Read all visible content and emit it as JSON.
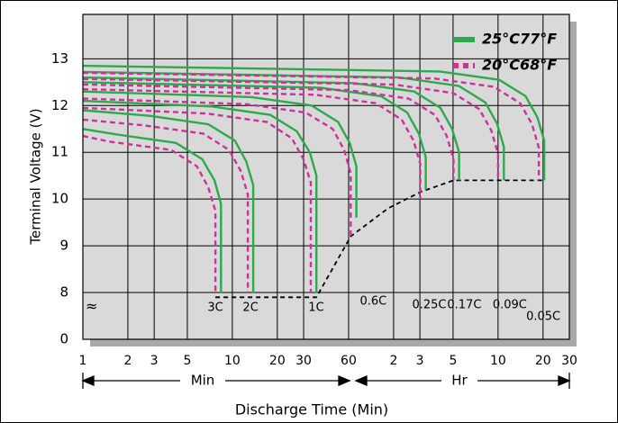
{
  "chart_data": {
    "type": "line",
    "xlabel": "Discharge Time (Min)",
    "ylabel": "Terminal Voltage (V)",
    "xscale": "log",
    "xlim": [
      1,
      1800
    ],
    "xticks": [
      1,
      2,
      3,
      5,
      10,
      20,
      30,
      60,
      {
        "value": 120,
        "label": "2"
      },
      {
        "value": 180,
        "label": "3"
      },
      {
        "value": 300,
        "label": "5"
      },
      {
        "value": 600,
        "label": "10"
      },
      {
        "value": 1200,
        "label": "20"
      },
      {
        "value": 1800,
        "label": "30"
      }
    ],
    "ylim": [
      0,
      13.95
    ],
    "ybreak": [
      0,
      7
    ],
    "axis_break_symbol": "≈",
    "yticks": [
      0,
      8,
      9,
      10,
      11,
      12,
      13
    ],
    "grid": true,
    "legend": "upper right",
    "x_ranges": [
      "Min",
      "Hr"
    ],
    "curve_labels": [
      "3C",
      "2C",
      "1C",
      "0.6C",
      "0.25C",
      "0.17C",
      "0.09C",
      "0.05C"
    ],
    "series": [
      {
        "name": "25°C77°F",
        "color": "#2fa84f",
        "dashed": false,
        "curves": [
          {
            "x": [
              1,
              1.7,
              4.2,
              6.3,
              7.6,
              8.4,
              8.4
            ],
            "values": [
              11.5,
              11.38,
              11.2,
              10.85,
              10.4,
              9.9,
              8
            ]
          },
          {
            "x": [
              1,
              2.8,
              6.9,
              10.4,
              12.4,
              13.8,
              13.8
            ],
            "values": [
              11.9,
              11.78,
              11.6,
              11.25,
              10.8,
              10.3,
              8
            ]
          },
          {
            "x": [
              1,
              7.3,
              18,
              27,
              33,
              36.5,
              36.5
            ],
            "values": [
              12.1,
              11.98,
              11.8,
              11.45,
              11,
              10.5,
              8
            ]
          },
          {
            "x": [
              1,
              13.5,
              34,
              51,
              61,
              67.6,
              67.6
            ],
            "values": [
              12.3,
              12.18,
              12,
              11.65,
              11.2,
              10.7,
              9.6
            ]
          },
          {
            "x": [
              1,
              39,
              99,
              148,
              177,
              197,
              197
            ],
            "values": [
              12.5,
              12.38,
              12.2,
              11.85,
              11.4,
              10.9,
              10.2
            ]
          },
          {
            "x": [
              1,
              66,
              165,
              247,
              296,
              329,
              329
            ],
            "values": [
              12.6,
              12.48,
              12.3,
              11.95,
              11.5,
              11,
              10.4
            ]
          },
          {
            "x": [
              1,
              131,
              328,
              492,
              590,
              656,
              656
            ],
            "values": [
              12.72,
              12.6,
              12.42,
              12.07,
              11.62,
              11.12,
              10.4
            ]
          },
          {
            "x": [
              1,
              244,
              611,
              917,
              1100,
              1222,
              1222
            ],
            "values": [
              12.85,
              12.73,
              12.55,
              12.2,
              11.75,
              11.25,
              10.4
            ]
          }
        ]
      },
      {
        "name": "20°C68°F",
        "color": "#cc3399",
        "dashed": true,
        "curves": [
          {
            "x": [
              1,
              1.5,
              3.9,
              5.8,
              6.9,
              7.7,
              7.7
            ],
            "values": [
              11.35,
              11.23,
              11.05,
              10.7,
              10.25,
              9.75,
              8
            ]
          },
          {
            "x": [
              1,
              2.5,
              6.4,
              9.5,
              11.4,
              12.7,
              12.7
            ],
            "values": [
              11.7,
              11.58,
              11.4,
              11.05,
              10.6,
              10.1,
              8
            ]
          },
          {
            "x": [
              1,
              6.7,
              17,
              25,
              30,
              33.5,
              33.5
            ],
            "values": [
              11.95,
              11.83,
              11.65,
              11.3,
              10.85,
              10.35,
              8
            ]
          },
          {
            "x": [
              1,
              12.4,
              31,
              47,
              56,
              62,
              62
            ],
            "values": [
              12.15,
              12.03,
              11.85,
              11.5,
              11.05,
              10.55,
              9.2
            ]
          },
          {
            "x": [
              1,
              36,
              91,
              136,
              163,
              181,
              181
            ],
            "values": [
              12.35,
              12.23,
              12.05,
              11.7,
              11.25,
              10.75,
              10
            ]
          },
          {
            "x": [
              1,
              60,
              151,
              227,
              272,
              302,
              302
            ],
            "values": [
              12.45,
              12.33,
              12.15,
              11.8,
              11.35,
              10.85,
              10.4
            ]
          },
          {
            "x": [
              1,
              120,
              300,
              450,
              540,
              600,
              600
            ],
            "values": [
              12.57,
              12.45,
              12.27,
              11.92,
              11.47,
              10.97,
              10.4
            ]
          },
          {
            "x": [
              1,
              225,
              563,
              844,
              1013,
              1125,
              1125
            ],
            "values": [
              12.7,
              12.58,
              12.4,
              12.05,
              11.6,
              11.1,
              10.4
            ]
          }
        ]
      }
    ],
    "end_voltage_line": {
      "color": "#000000",
      "x": [
        7.7,
        36.5,
        62,
        110,
        181,
        302,
        1222
      ],
      "values": [
        7.9,
        7.9,
        9.2,
        9.8,
        10.15,
        10.4,
        10.4
      ]
    }
  }
}
